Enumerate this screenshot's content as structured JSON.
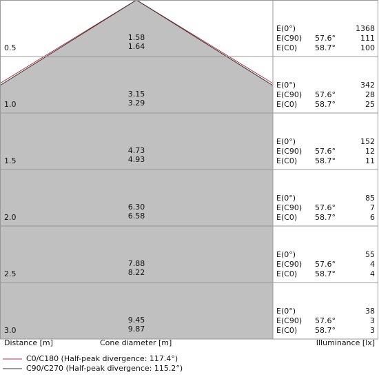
{
  "rows": [
    {
      "distance": "0.5",
      "diameter_c0": "1.58",
      "diameter_c90": "1.64",
      "e0_label": "E(0°)",
      "e0": "1368",
      "ec90_label": "E(C90)",
      "ec90_angle": "57.6°",
      "ec90": "111",
      "ec0_label": "E(C0)",
      "ec0_angle": "58.7°",
      "ec0": "100"
    },
    {
      "distance": "1.0",
      "diameter_c0": "3.15",
      "diameter_c90": "3.29",
      "e0_label": "E(0°)",
      "e0": "342",
      "ec90_label": "E(C90)",
      "ec90_angle": "57.6°",
      "ec90": "28",
      "ec0_label": "E(C0)",
      "ec0_angle": "58.7°",
      "ec0": "25"
    },
    {
      "distance": "1.5",
      "diameter_c0": "4.73",
      "diameter_c90": "4.93",
      "e0_label": "E(0°)",
      "e0": "152",
      "ec90_label": "E(C90)",
      "ec90_angle": "57.6°",
      "ec90": "12",
      "ec0_label": "E(C0)",
      "ec0_angle": "58.7°",
      "ec0": "11"
    },
    {
      "distance": "2.0",
      "diameter_c0": "6.30",
      "diameter_c90": "6.58",
      "e0_label": "E(0°)",
      "e0": "85",
      "ec90_label": "E(C90)",
      "ec90_angle": "57.6°",
      "ec90": "7",
      "ec0_label": "E(C0)",
      "ec0_angle": "58.7°",
      "ec0": "6"
    },
    {
      "distance": "2.5",
      "diameter_c0": "7.88",
      "diameter_c90": "8.22",
      "e0_label": "E(0°)",
      "e0": "55",
      "ec90_label": "E(C90)",
      "ec90_angle": "57.6°",
      "ec90": "4",
      "ec0_label": "E(C0)",
      "ec0_angle": "58.7°",
      "ec0": "4"
    },
    {
      "distance": "3.0",
      "diameter_c0": "9.45",
      "diameter_c90": "9.87",
      "e0_label": "E(0°)",
      "e0": "38",
      "ec90_label": "E(C90)",
      "ec90_angle": "57.6°",
      "ec90": "3",
      "ec0_label": "E(C0)",
      "ec0_angle": "58.7°",
      "ec0": "3"
    }
  ],
  "axis_labels": {
    "distance": "Distance [m]",
    "diameter": "Cone diameter [m]",
    "illuminance": "Illuminance [lx]"
  },
  "legend": [
    "C0/C180 (Half-peak divergence: 117.4°)",
    "C90/C270 (Half-peak divergence: 115.2°)"
  ]
}
